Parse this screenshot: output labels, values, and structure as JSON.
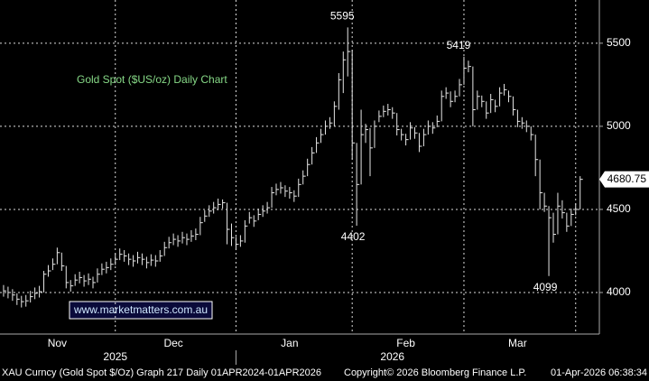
{
  "chart_data": {
    "type": "hlc",
    "title": "Gold Spot ($US/oz) Daily Chart",
    "watermark": "www.marketmatters.com.au",
    "footer": [
      "XAU Curncy (Gold Spot  $/Oz) Graph 217 Daily 01APR2024-01APR2026",
      "Copyright© 2026 Bloomberg Finance L.P.",
      "01-Apr-2026 06:38:34"
    ],
    "close": [
      4010,
      4000,
      3985,
      3960,
      3945,
      3950,
      3975,
      3995,
      4005,
      4110,
      4130,
      4170,
      4240,
      4160,
      4060,
      4040,
      4075,
      4090,
      4070,
      4080,
      4060,
      4110,
      4140,
      4150,
      4170,
      4200,
      4230,
      4220,
      4200,
      4190,
      4210,
      4200,
      4180,
      4195,
      4190,
      4220,
      4270,
      4300,
      4320,
      4310,
      4330,
      4320,
      4340,
      4350,
      4420,
      4460,
      4490,
      4510,
      4530,
      4540,
      4380,
      4330,
      4290,
      4310,
      4400,
      4450,
      4430,
      4470,
      4490,
      4510,
      4600,
      4620,
      4630,
      4610,
      4600,
      4580,
      4650,
      4700,
      4770,
      4840,
      4900,
      4950,
      5000,
      5020,
      5120,
      5280,
      5400,
      5450,
      4900,
      4650,
      4950,
      4980,
      4870,
      5000,
      5060,
      5090,
      5100,
      5080,
      4980,
      4950,
      4920,
      4990,
      4960,
      4880,
      4950,
      5000,
      4990,
      5030,
      5180,
      5200,
      5150,
      5180,
      5250,
      5350,
      5360,
      5100,
      5180,
      5150,
      5080,
      5160,
      5120,
      5200,
      5220,
      5180,
      5100,
      5030,
      5020,
      5000,
      4950,
      4800,
      4600,
      4520,
      4450,
      4350,
      4520,
      4480,
      4400,
      4470,
      4500,
      4680.75
    ],
    "high": [
      4045,
      4035,
      4020,
      3995,
      3980,
      3985,
      4010,
      4030,
      4040,
      4130,
      4165,
      4205,
      4270,
      4240,
      4160,
      4075,
      4110,
      4125,
      4105,
      4115,
      4095,
      4145,
      4175,
      4185,
      4205,
      4235,
      4265,
      4255,
      4235,
      4225,
      4245,
      4235,
      4215,
      4230,
      4225,
      4255,
      4305,
      4335,
      4355,
      4345,
      4365,
      4355,
      4375,
      4385,
      4455,
      4495,
      4525,
      4545,
      4565,
      4560,
      4540,
      4415,
      4335,
      4345,
      4435,
      4485,
      4465,
      4505,
      4525,
      4545,
      4635,
      4655,
      4665,
      4645,
      4635,
      4615,
      4685,
      4735,
      4805,
      4875,
      4935,
      4985,
      5035,
      5055,
      5150,
      5320,
      5450,
      5595,
      5460,
      4900,
      5100,
      5015,
      4990,
      5035,
      5095,
      5125,
      5135,
      5115,
      5080,
      4985,
      4955,
      5025,
      4995,
      4960,
      4985,
      5035,
      5025,
      5065,
      5215,
      5235,
      5210,
      5215,
      5285,
      5419,
      5395,
      5360,
      5215,
      5185,
      5150,
      5195,
      5160,
      5235,
      5255,
      5215,
      5180,
      5100,
      5055,
      5035,
      5000,
      4950,
      4800,
      4600,
      4520,
      4480,
      4600,
      4555,
      4480,
      4505,
      4535,
      4700
    ],
    "low": [
      3975,
      3965,
      3950,
      3925,
      3910,
      3915,
      3940,
      3960,
      3970,
      4000,
      4095,
      4135,
      4170,
      4130,
      4025,
      4005,
      4040,
      4055,
      4035,
      4045,
      4025,
      4060,
      4105,
      4115,
      4135,
      4165,
      4195,
      4185,
      4165,
      4155,
      4175,
      4165,
      4145,
      4160,
      4155,
      4185,
      4220,
      4265,
      4285,
      4275,
      4295,
      4285,
      4305,
      4315,
      4345,
      4425,
      4455,
      4475,
      4495,
      4505,
      4290,
      4280,
      4255,
      4275,
      4300,
      4415,
      4395,
      4435,
      4455,
      4475,
      4510,
      4585,
      4595,
      4575,
      4565,
      4545,
      4575,
      4650,
      4700,
      4770,
      4840,
      4900,
      4950,
      4985,
      5000,
      5100,
      5200,
      5300,
      4800,
      4402,
      4650,
      4900,
      4700,
      4870,
      5025,
      5055,
      5065,
      5045,
      4945,
      4915,
      4885,
      4920,
      4925,
      4845,
      4880,
      4950,
      4955,
      4995,
      5030,
      5165,
      5115,
      5145,
      5180,
      5250,
      5325,
      5000,
      5100,
      5115,
      5045,
      5080,
      5085,
      5120,
      5185,
      5145,
      5065,
      4995,
      4985,
      4965,
      4915,
      4700,
      4500,
      4485,
      4099,
      4300,
      4350,
      4445,
      4365,
      4400,
      4465,
      4500
    ],
    "peaks": [
      77,
      103
    ],
    "troughs": [
      79,
      122
    ],
    "xlim": [
      -0.8,
      133.3
    ],
    "xticks": [
      {
        "value": 12,
        "label": "Nov"
      },
      {
        "value": 38,
        "label": "Dec"
      },
      {
        "value": 64,
        "label": "Jan"
      },
      {
        "value": 90,
        "label": "Feb"
      },
      {
        "value": 115,
        "label": "Mar"
      }
    ],
    "year_ticks": [
      {
        "value": 25,
        "label": "2025"
      },
      {
        "value": 87,
        "label": "2026"
      }
    ],
    "year_break": 52,
    "xgrid": [
      25,
      52,
      78,
      103,
      128
    ],
    "ylim": [
      3750,
      5760
    ],
    "yticks": [
      4000,
      4500,
      5000,
      5500
    ],
    "grid": true,
    "color": "#e6e6e6",
    "title_color": "#86d886"
  }
}
